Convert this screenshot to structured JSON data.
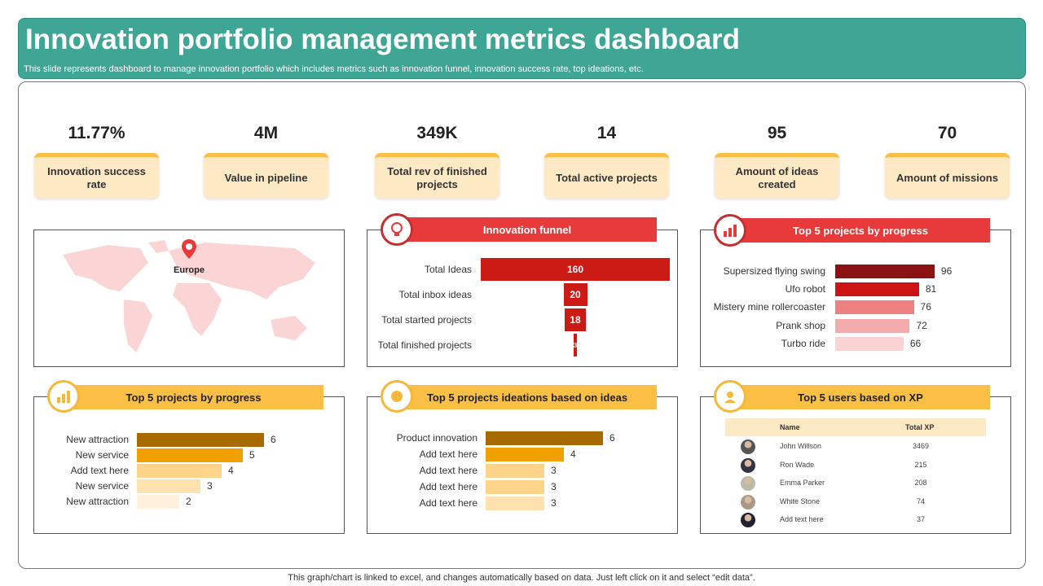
{
  "header": {
    "title": "Innovation portfolio management metrics dashboard",
    "subtitle": "This slide represents dashboard to manage innovation portfolio which includes metrics such as innovation funnel, innovation success rate, top ideations, etc."
  },
  "kpis": [
    {
      "value": "11.77%",
      "label": "Innovation success rate"
    },
    {
      "value": "4M",
      "label": "Value in pipeline"
    },
    {
      "value": "349K",
      "label": "Total rev of finished projects"
    },
    {
      "value": "14",
      "label": "Total active projects"
    },
    {
      "value": "95",
      "label": "Amount of ideas created"
    },
    {
      "value": "70",
      "label": "Amount of missions"
    }
  ],
  "map": {
    "marker_label": "Europe",
    "color": "#fbd5d5",
    "marker_color": "#e83a3a"
  },
  "colors": {
    "teal": "#3fa595",
    "red": "#e83a3a",
    "yellow": "#fbbf45"
  },
  "chart_data": [
    {
      "type": "bar",
      "title": "Innovation funnel",
      "orientation": "funnel",
      "categories": [
        "Total Ideas",
        "Total inbox ideas",
        "Total started projects",
        "Total finished projects"
      ],
      "values": [
        160,
        20,
        18,
        3
      ],
      "colors": [
        "#cc1a14",
        "#cc1a14",
        "#cc1a14",
        "#cc1a14"
      ]
    },
    {
      "type": "bar",
      "title": "Top 5 projects by  progress",
      "orientation": "horizontal",
      "categories": [
        "Supersized  flying swing",
        "Ufo robot",
        "Mistery mine rollercoaster",
        "Prank shop",
        "Turbo ride"
      ],
      "values": [
        96,
        81,
        76,
        72,
        66
      ],
      "colors": [
        "#8b1212",
        "#cc1414",
        "#ef8080",
        "#f4abab",
        "#fad4d4"
      ]
    },
    {
      "type": "bar",
      "title": "Top 5 projects by progress",
      "orientation": "horizontal",
      "categories": [
        "New attraction",
        "New service",
        "Add text here",
        "New service",
        "New attraction"
      ],
      "values": [
        6,
        5,
        4,
        3,
        2
      ],
      "colors": [
        "#a66a00",
        "#f0a000",
        "#fdd48a",
        "#fde2b0",
        "#fef0dc"
      ]
    },
    {
      "type": "bar",
      "title": "Top 5 projects ideations based on ideas",
      "orientation": "horizontal",
      "categories": [
        "Product innovation",
        "Add text here",
        "Add text here",
        "Add text here",
        "Add text here"
      ],
      "values": [
        6,
        4,
        3,
        3,
        3
      ],
      "colors": [
        "#a66a00",
        "#f0a000",
        "#fdd48a",
        "#fdd48a",
        "#fde2b0"
      ]
    },
    {
      "type": "table",
      "title": "Top 5 users based on XP",
      "columns": [
        "Name",
        "Total XP"
      ],
      "rows": [
        [
          "John Willson",
          "3469"
        ],
        [
          "Ron Wade",
          "215"
        ],
        [
          "Emma Parker",
          "208"
        ],
        [
          "White Stone",
          "74"
        ],
        [
          "Add text here",
          "37"
        ]
      ]
    }
  ],
  "footer": "This graph/chart is linked to excel,  and changes automatically based on data. Just left click on it and select “edit data”."
}
